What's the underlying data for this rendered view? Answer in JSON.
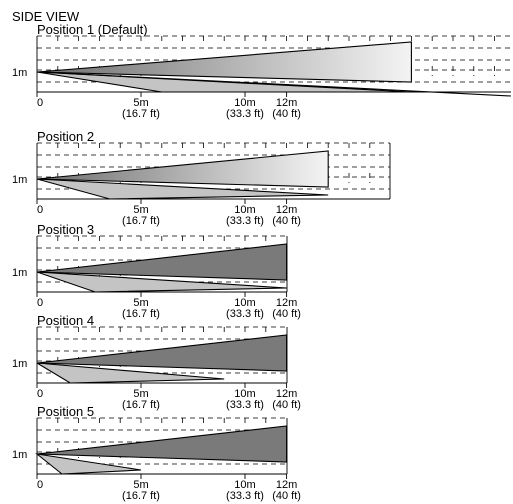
{
  "title": "SIDE VIEW",
  "height_label": "1m",
  "x_labels": [
    {
      "value": 0,
      "line1": "0",
      "line2": ""
    },
    {
      "value": 5,
      "line1": "5m",
      "line2": "(16.7 ft)"
    },
    {
      "value": 10,
      "line1": "10m",
      "line2": "(33.3 ft)"
    },
    {
      "value": 12,
      "line1": "12m",
      "line2": "(40 ft)"
    }
  ],
  "positions": [
    {
      "name": "Position 1 (Default)",
      "upper_range_m": 18,
      "lower_range_m": 18,
      "lower_start_m": 6,
      "upper_gradient": true
    },
    {
      "name": "Position 2",
      "upper_range_m": 14,
      "lower_range_m": 14,
      "lower_start_m": 3.5,
      "upper_gradient": true
    },
    {
      "name": "Position 3",
      "upper_range_m": 12,
      "lower_range_m": 12,
      "lower_start_m": 2.8,
      "upper_gradient": false
    },
    {
      "name": "Position 4",
      "upper_range_m": 12,
      "lower_range_m": 9,
      "lower_start_m": 1.6,
      "upper_gradient": false
    },
    {
      "name": "Position 5",
      "upper_range_m": 12,
      "lower_range_m": 5,
      "lower_start_m": 1.2,
      "upper_gradient": false
    }
  ],
  "colors": {
    "upper_beam_dark": "#6e6e6e",
    "upper_beam_light": "#f4f4f4",
    "upper_beam_solid": "#7a7a7a",
    "lower_beam": "#c4c4c4"
  }
}
